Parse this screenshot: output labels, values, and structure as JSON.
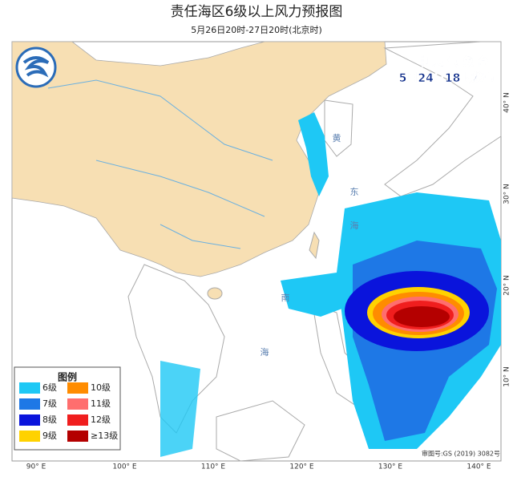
{
  "header": {
    "title": "责任海区6级以上风力预报图",
    "subtitle": "5月26日20时-27日20时(北京时)"
  },
  "agency": {
    "name": "中 央 气 象 台",
    "issued": "5月24日18时发布"
  },
  "legend": {
    "title": "图例",
    "items": [
      {
        "label": "6级",
        "color": "#1ec8f5"
      },
      {
        "label": "7级",
        "color": "#1e78e6"
      },
      {
        "label": "8级",
        "color": "#0a14dc"
      },
      {
        "label": "9级",
        "color": "#ffd200"
      },
      {
        "label": "10级",
        "color": "#ff8c00"
      },
      {
        "label": "11级",
        "color": "#ff6e6e"
      },
      {
        "label": "12级",
        "color": "#f01e1e"
      },
      {
        "label": "≥13级",
        "color": "#b40000"
      }
    ]
  },
  "axes": {
    "lon": [
      "90° E",
      "100° E",
      "110° E",
      "120° E",
      "130° E",
      "140° E"
    ],
    "lat": [
      "40° N",
      "30° N",
      "20° N",
      "10° N"
    ]
  },
  "sea_labels": [
    "黄",
    "东",
    "海",
    "南",
    "海"
  ],
  "approval": "审图号:GS (2019) 3082号"
}
